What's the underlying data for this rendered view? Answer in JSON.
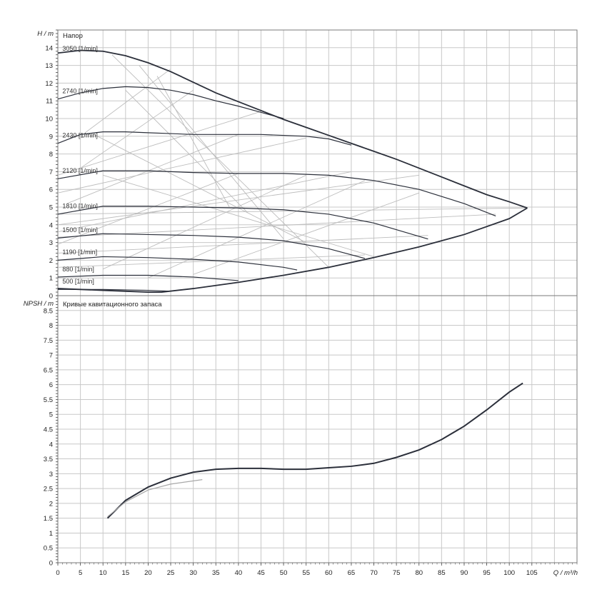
{
  "chart_data": [
    {
      "type": "line",
      "title": "Напор",
      "ylabel": "H / m",
      "xlim": [
        0,
        115
      ],
      "ylim": [
        0,
        15
      ],
      "yticks": [
        0,
        1,
        2,
        3,
        4,
        5,
        6,
        7,
        8,
        9,
        10,
        11,
        12,
        13,
        14
      ],
      "grid": true,
      "curves": [
        {
          "name": "3050 [1/min]",
          "x": [
            0,
            5,
            10,
            15,
            20,
            25,
            30,
            35,
            40,
            45,
            50,
            55,
            60,
            65,
            70,
            75,
            80,
            85,
            90,
            95,
            100,
            104
          ],
          "y": [
            13.7,
            13.85,
            13.8,
            13.55,
            13.15,
            12.65,
            12.05,
            11.45,
            10.95,
            10.45,
            9.95,
            9.5,
            9.05,
            8.6,
            8.15,
            7.7,
            7.2,
            6.7,
            6.2,
            5.7,
            5.3,
            4.95
          ]
        },
        {
          "name": "2740 [1/min]",
          "x": [
            0,
            5,
            10,
            15,
            20,
            25,
            30,
            35,
            40,
            45,
            50
          ],
          "y": [
            11.1,
            11.45,
            11.7,
            11.8,
            11.75,
            11.6,
            11.35,
            11.0,
            10.7,
            10.35,
            10.0
          ]
        },
        {
          "name": "2430 [1/min]",
          "x": [
            0,
            5,
            10,
            15,
            20,
            25,
            30,
            35,
            40,
            45,
            50,
            55,
            60,
            65
          ],
          "y": [
            8.6,
            9.1,
            9.25,
            9.25,
            9.2,
            9.15,
            9.1,
            9.1,
            9.1,
            9.1,
            9.05,
            9.0,
            8.85,
            8.5
          ]
        },
        {
          "name": "2120 [1/min]",
          "x": [
            0,
            10,
            20,
            30,
            40,
            50,
            60,
            70,
            80,
            90,
            97
          ],
          "y": [
            6.6,
            7.05,
            7.05,
            6.95,
            6.9,
            6.9,
            6.8,
            6.5,
            6.0,
            5.2,
            4.5
          ]
        },
        {
          "name": "1810 [1/min]",
          "x": [
            0,
            10,
            20,
            30,
            40,
            50,
            60,
            70,
            82
          ],
          "y": [
            4.6,
            5.05,
            5.05,
            5.0,
            4.95,
            4.85,
            4.6,
            4.1,
            3.2
          ]
        },
        {
          "name": "1500 [1/min]",
          "x": [
            0,
            10,
            20,
            30,
            40,
            50,
            60,
            68
          ],
          "y": [
            3.25,
            3.5,
            3.45,
            3.4,
            3.3,
            3.1,
            2.65,
            2.1
          ]
        },
        {
          "name": "1190 [1/min]",
          "x": [
            0,
            10,
            20,
            30,
            40,
            50,
            53
          ],
          "y": [
            2.0,
            2.2,
            2.15,
            2.05,
            1.9,
            1.6,
            1.45
          ]
        },
        {
          "name": "880 [1/min]",
          "x": [
            0,
            10,
            20,
            30,
            35,
            40
          ],
          "y": [
            1.05,
            1.15,
            1.15,
            1.05,
            0.95,
            0.85
          ]
        },
        {
          "name": "500 [1/min]",
          "x": [
            0,
            10,
            20,
            25
          ],
          "y": [
            0.35,
            0.35,
            0.3,
            0.25
          ]
        }
      ],
      "envelope": {
        "x": [
          0,
          10,
          20,
          23,
          30,
          40,
          50,
          60,
          70,
          80,
          90,
          100,
          104
        ],
        "y": [
          0.4,
          0.3,
          0.2,
          0.2,
          0.4,
          0.75,
          1.15,
          1.6,
          2.15,
          2.75,
          3.45,
          4.35,
          4.95
        ]
      }
    },
    {
      "type": "line",
      "title": "Кривые кавитационного запаса",
      "ylabel": "NPSH / m",
      "xlabel": "Q / m³/h",
      "xlim": [
        0,
        115
      ],
      "ylim": [
        0,
        9
      ],
      "xticks": [
        0,
        5,
        10,
        15,
        20,
        25,
        30,
        35,
        40,
        45,
        50,
        55,
        60,
        65,
        70,
        75,
        80,
        85,
        90,
        95,
        100,
        105
      ],
      "yticks": [
        "0",
        "0.5",
        "1",
        "1.5",
        "2",
        "2.5",
        "3",
        "3.5",
        "4",
        "4.5",
        "5",
        "5.5",
        "6",
        "6.5",
        "7",
        "7.5",
        "8",
        "8.5"
      ],
      "grid": true,
      "series": [
        {
          "x": [
            11,
            15,
            20,
            25,
            30,
            35,
            40,
            45,
            50,
            55,
            60,
            65,
            70,
            75,
            80,
            85,
            90,
            95,
            100,
            103
          ],
          "y": [
            1.5,
            2.1,
            2.55,
            2.85,
            3.05,
            3.15,
            3.18,
            3.18,
            3.15,
            3.15,
            3.2,
            3.25,
            3.35,
            3.55,
            3.8,
            4.15,
            4.6,
            5.15,
            5.75,
            6.05
          ]
        },
        {
          "x": [
            11,
            15,
            20,
            25,
            32
          ],
          "y": [
            1.55,
            2.05,
            2.45,
            2.65,
            2.8
          ]
        }
      ]
    }
  ]
}
